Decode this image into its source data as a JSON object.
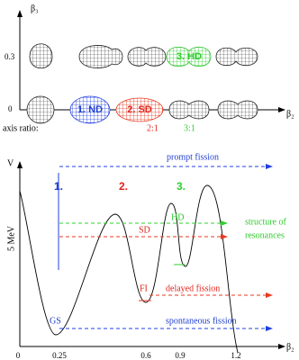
{
  "top": {
    "y_axis_label": "β₃",
    "x_axis_label": "β₂",
    "y_ticks": [
      "0.3",
      "0"
    ],
    "shape_labels": [
      "1. ND",
      "2. SD",
      "3. HD"
    ],
    "axis_ratio_label": "axis ratio:",
    "ratios": [
      "2:1",
      "3:1"
    ]
  },
  "bottom": {
    "y_axis_label": "V",
    "scale_label": "5 MeV",
    "x_axis_label": "β₂",
    "x_ticks": [
      "0",
      "0.25",
      "0.6",
      "0.9",
      "1.2"
    ],
    "barriers": [
      "1.",
      "2.",
      "3."
    ],
    "states": [
      "GS",
      "FI",
      "SD",
      "HD"
    ],
    "arrows": {
      "prompt": "prompt fission",
      "resonances": [
        "structure of",
        "resonances"
      ],
      "delayed": "delayed fission",
      "spontaneous": "spontaneous fission"
    }
  }
}
